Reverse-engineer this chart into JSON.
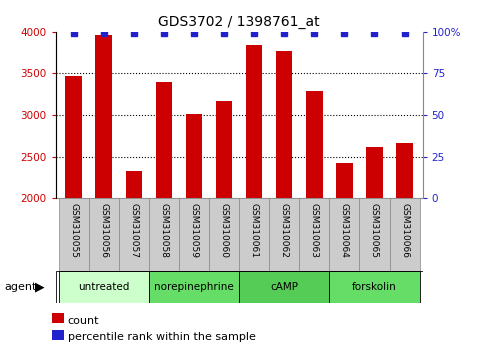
{
  "title": "GDS3702 / 1398761_at",
  "samples": [
    "GSM310055",
    "GSM310056",
    "GSM310057",
    "GSM310058",
    "GSM310059",
    "GSM310060",
    "GSM310061",
    "GSM310062",
    "GSM310063",
    "GSM310064",
    "GSM310065",
    "GSM310066"
  ],
  "counts": [
    3470,
    3960,
    2330,
    3400,
    3010,
    3170,
    3840,
    3775,
    3290,
    2420,
    2620,
    2660
  ],
  "bar_color": "#cc0000",
  "dot_color": "#2222cc",
  "ylim_left": [
    2000,
    4000
  ],
  "ylim_right": [
    0,
    100
  ],
  "yticks_left": [
    2000,
    2500,
    3000,
    3500,
    4000
  ],
  "yticks_right": [
    0,
    25,
    50,
    75,
    100
  ],
  "ytick_labels_right": [
    "0",
    "25",
    "50",
    "75",
    "100%"
  ],
  "groups": [
    {
      "label": "untreated",
      "start": 0,
      "end": 3,
      "color": "#ccffcc"
    },
    {
      "label": "norepinephrine",
      "start": 3,
      "end": 6,
      "color": "#66dd66"
    },
    {
      "label": "cAMP",
      "start": 6,
      "end": 9,
      "color": "#55cc55"
    },
    {
      "label": "forskolin",
      "start": 9,
      "end": 12,
      "color": "#66dd66"
    }
  ],
  "agent_label": "agent",
  "legend_count_label": "count",
  "legend_pct_label": "percentile rank within the sample",
  "background_color": "#ffffff",
  "title_fontsize": 10,
  "tick_fontsize": 7.5,
  "label_fontsize": 8,
  "sample_box_color": "#cccccc",
  "sample_box_edge": "#888888"
}
